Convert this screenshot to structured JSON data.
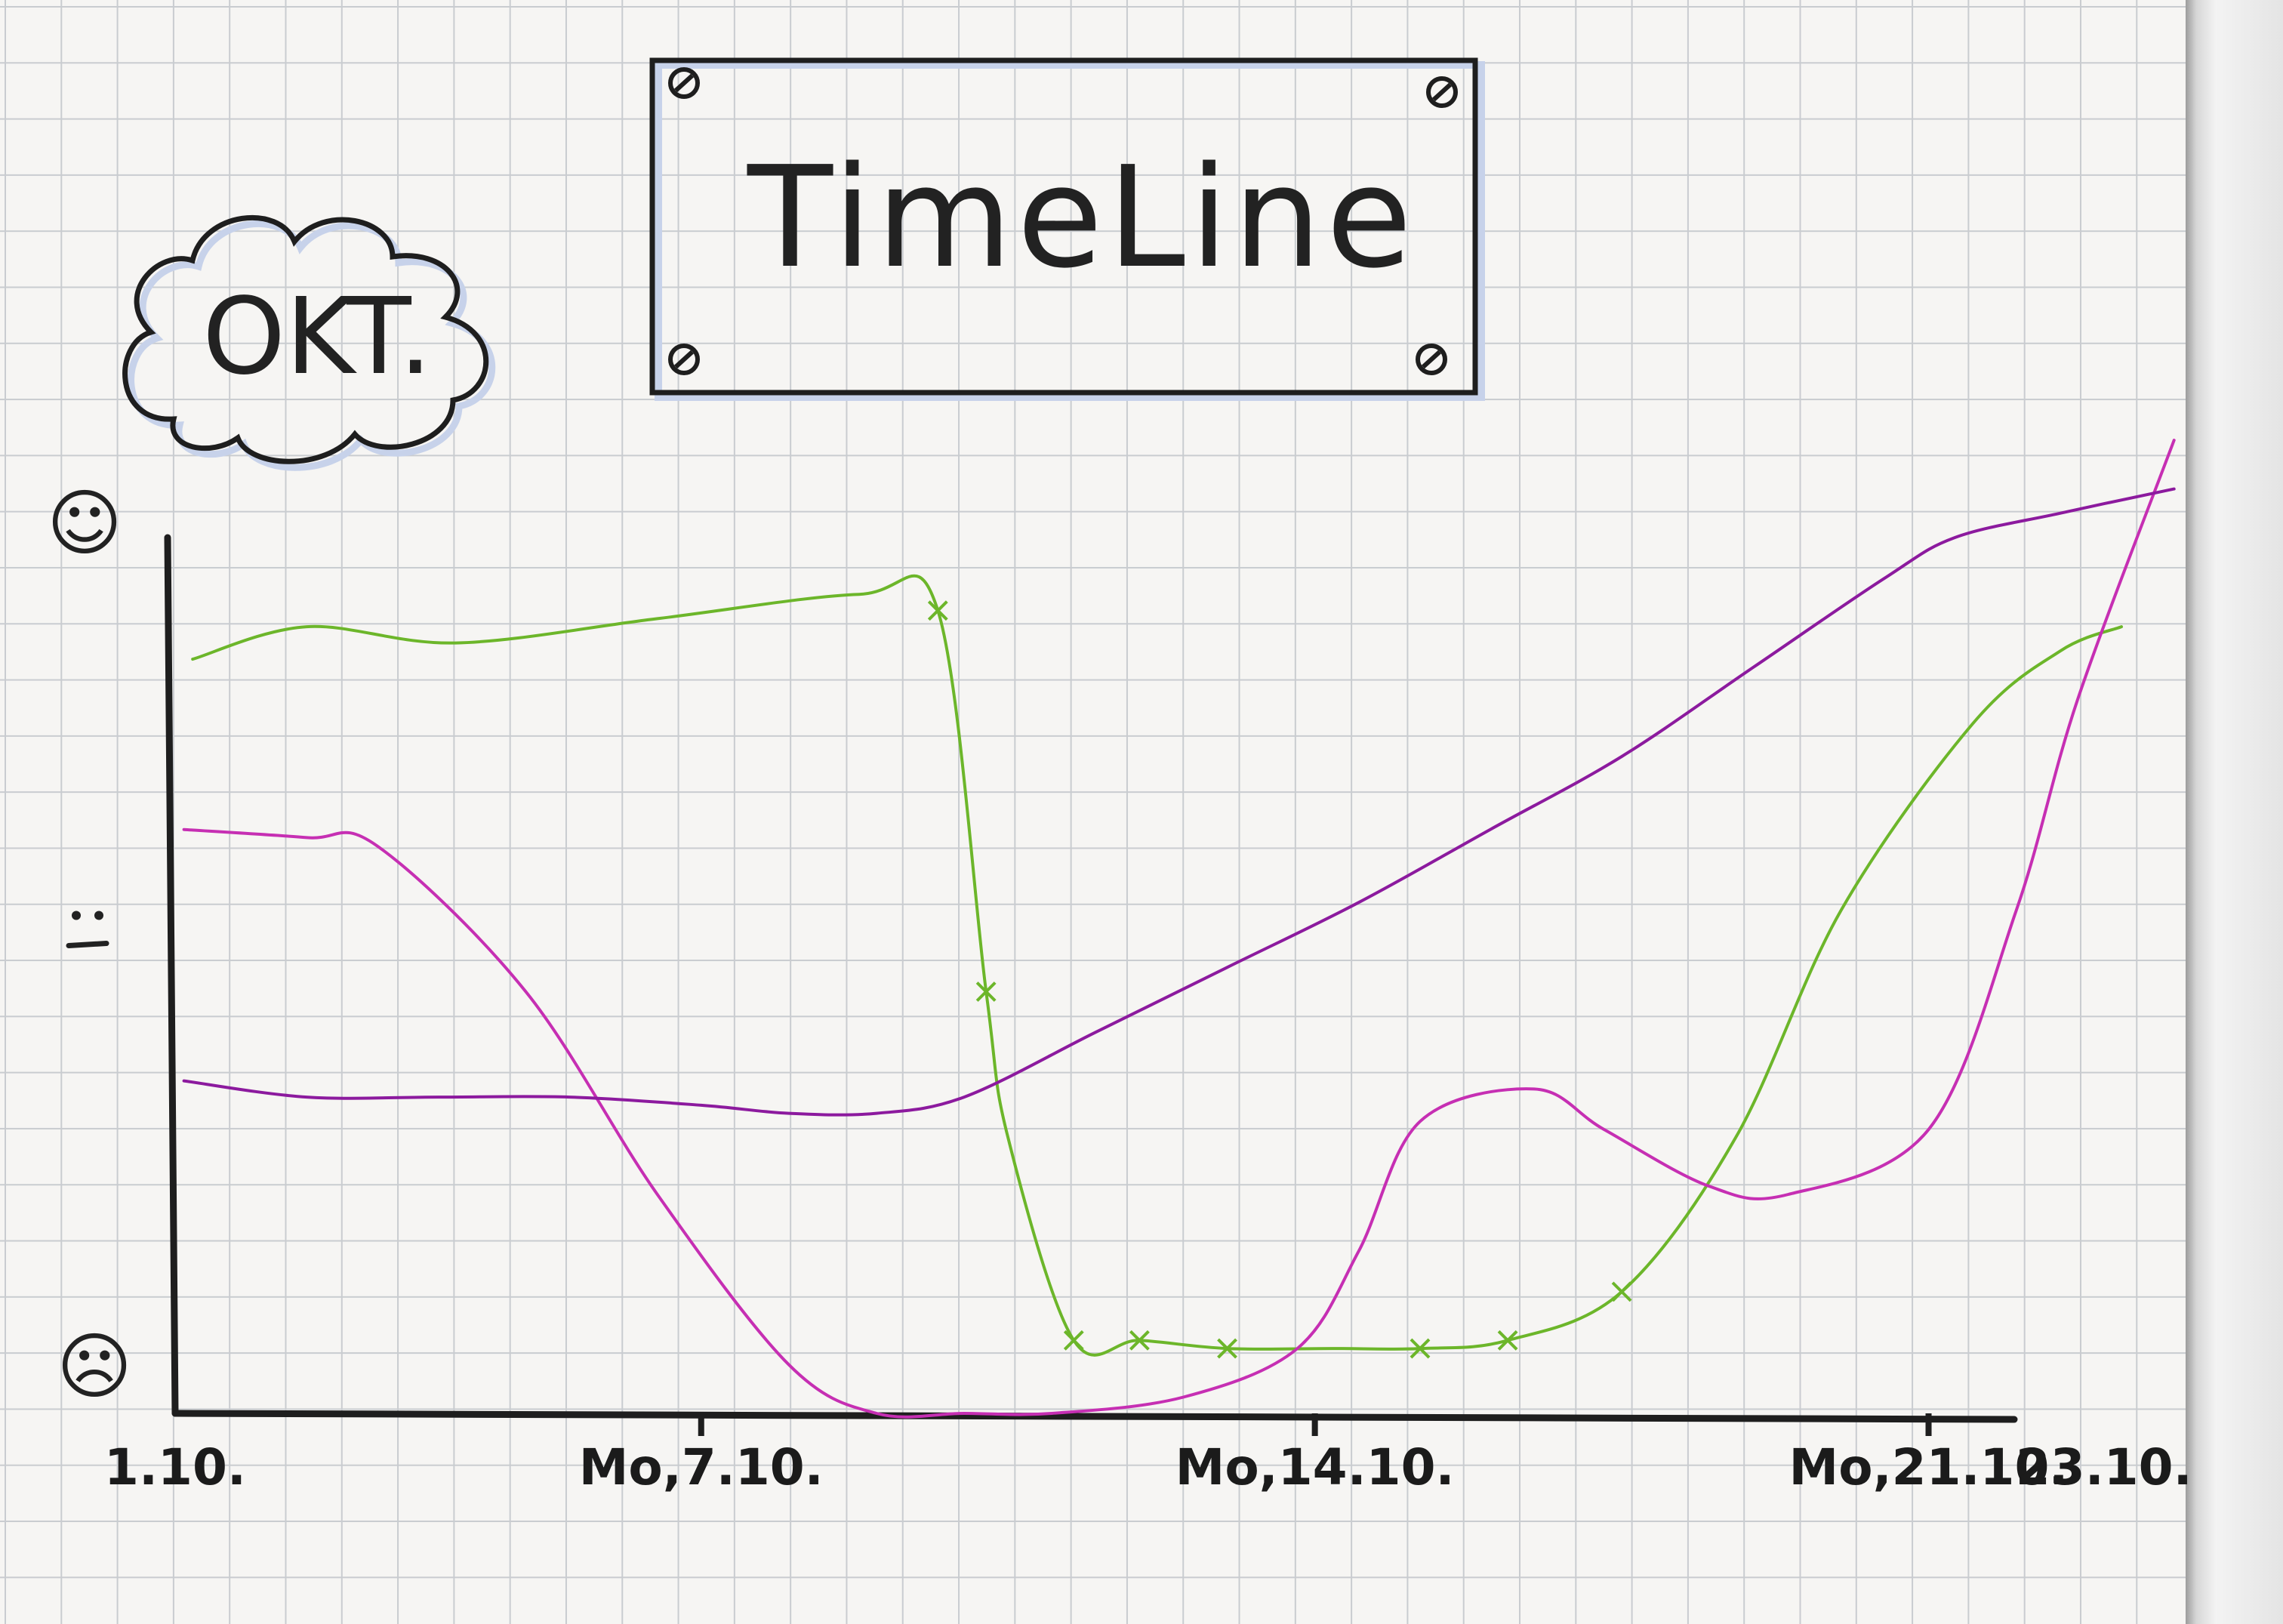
{
  "title": "TimeLine",
  "badge": "OKT.",
  "colors": {
    "green": "#6cb62a",
    "magenta": "#c62fb3",
    "purple": "#8c1a9e",
    "ink": "#1e1e1e"
  },
  "chart_data": {
    "type": "line",
    "title": "TimeLine",
    "subtitle": "OKT.",
    "xlabel": "",
    "ylabel": "",
    "x_tick_labels": [
      "1.10.",
      "Mo,7.10.",
      "Mo,14.10.",
      "Mo,21.10.",
      "23.10."
    ],
    "x_tick_days": [
      1,
      7,
      14,
      21,
      23
    ],
    "xlim": [
      1,
      23.2
    ],
    "y_tick_icons": [
      "happy-face-icon",
      "neutral-face-icon",
      "sad-face-icon"
    ],
    "y_tick_values": [
      1,
      0.5,
      0
    ],
    "ylim": [
      0,
      1.08
    ],
    "grid": true,
    "legend": "none",
    "series": [
      {
        "color": "green",
        "x": [
          1.2,
          2.5,
          4.2,
          6.5,
          8.8,
          9.7,
          10.25,
          10.5,
          11.25,
          12.0,
          13.0,
          14.2,
          15.2,
          16.2,
          17.5,
          18.8,
          20.0,
          21.5,
          22.5,
          23.2
        ],
        "y": [
          0.93,
          0.97,
          0.95,
          0.98,
          1.01,
          0.99,
          0.52,
          0.34,
          0.09,
          0.09,
          0.08,
          0.08,
          0.08,
          0.09,
          0.15,
          0.34,
          0.62,
          0.85,
          0.94,
          0.97
        ],
        "markers_at_index": [
          5,
          6,
          8,
          9,
          10,
          12,
          13,
          14
        ]
      },
      {
        "color": "magenta",
        "x": [
          1.1,
          2.5,
          3.3,
          5.0,
          6.5,
          8.0,
          9.0,
          10.0,
          11.0,
          12.5,
          13.8,
          14.5,
          15.2,
          16.5,
          17.3,
          18.5,
          19.4,
          21.0,
          22.0,
          22.7,
          23.8
        ],
        "y": [
          0.72,
          0.71,
          0.7,
          0.52,
          0.27,
          0.06,
          0.0,
          0.0,
          0.0,
          0.02,
          0.08,
          0.2,
          0.36,
          0.4,
          0.35,
          0.28,
          0.27,
          0.35,
          0.62,
          0.88,
          1.2
        ]
      },
      {
        "color": "purple",
        "x": [
          1.1,
          2.5,
          4.0,
          5.5,
          7.0,
          8.0,
          9.0,
          10.0,
          11.5,
          13.0,
          14.5,
          16.0,
          17.5,
          19.0,
          20.5,
          21.3,
          22.5,
          23.8
        ],
        "y": [
          0.41,
          0.39,
          0.39,
          0.39,
          0.38,
          0.37,
          0.37,
          0.39,
          0.47,
          0.55,
          0.63,
          0.72,
          0.81,
          0.92,
          1.03,
          1.08,
          1.11,
          1.14
        ]
      }
    ]
  }
}
